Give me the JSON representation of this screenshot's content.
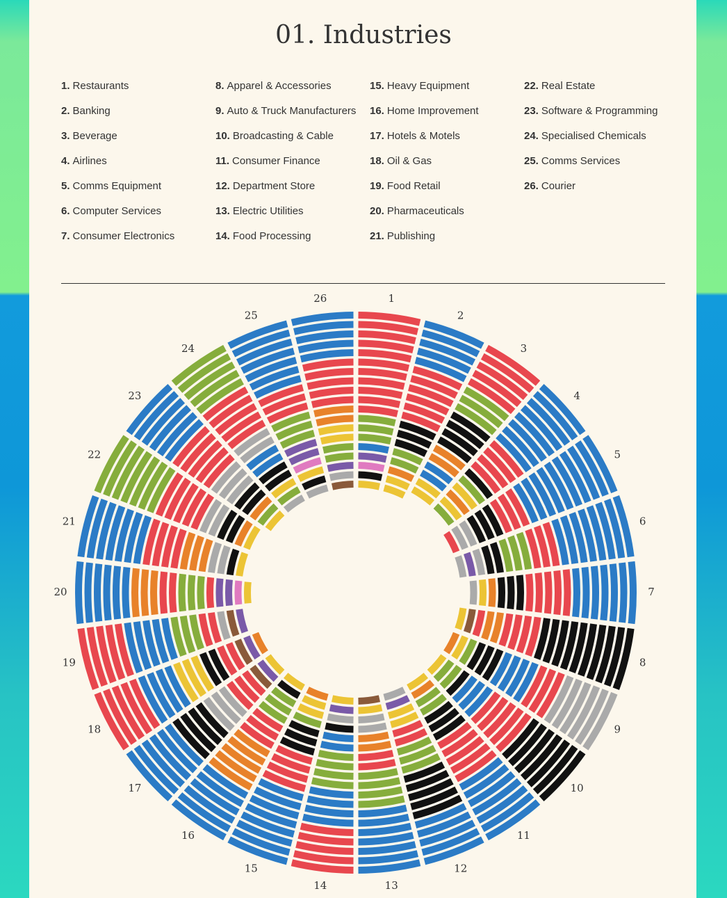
{
  "header": {
    "title": "01. Industries"
  },
  "legend": [
    {
      "number": "1.",
      "name": "Restaurants"
    },
    {
      "number": "2.",
      "name": "Banking"
    },
    {
      "number": "3.",
      "name": "Beverage"
    },
    {
      "number": "4.",
      "name": "Airlines"
    },
    {
      "number": "5.",
      "name": "Comms Equipment"
    },
    {
      "number": "6.",
      "name": "Computer Services"
    },
    {
      "number": "7.",
      "name": "Consumer Electronics"
    },
    {
      "number": "8.",
      "name": "Apparel & Accessories"
    },
    {
      "number": "9.",
      "name": "Auto & Truck Manufacturers"
    },
    {
      "number": "10.",
      "name": "Broadcasting & Cable"
    },
    {
      "number": "11.",
      "name": "Consumer Finance"
    },
    {
      "number": "12.",
      "name": "Department Store"
    },
    {
      "number": "13.",
      "name": "Electric Utilities"
    },
    {
      "number": "14.",
      "name": "Food Processing"
    },
    {
      "number": "15.",
      "name": "Heavy Equipment"
    },
    {
      "number": "16.",
      "name": "Home Improvement"
    },
    {
      "number": "17.",
      "name": "Hotels & Motels"
    },
    {
      "number": "18.",
      "name": "Oil & Gas"
    },
    {
      "number": "19.",
      "name": "Food Retail"
    },
    {
      "number": "20.",
      "name": "Pharmaceuticals"
    },
    {
      "number": "21.",
      "name": "Publishing"
    },
    {
      "number": "22.",
      "name": "Real Estate"
    },
    {
      "number": "23.",
      "name": "Software & Programming"
    },
    {
      "number": "24.",
      "name": "Specialised Chemicals"
    },
    {
      "number": "25.",
      "name": "Comms Services"
    },
    {
      "number": "26.",
      "name": "Courier"
    }
  ],
  "wheel": {
    "labels": [
      "1",
      "2",
      "3",
      "4",
      "5",
      "6",
      "7",
      "8",
      "9",
      "10",
      "11",
      "12",
      "13",
      "14",
      "15",
      "16",
      "17",
      "18",
      "19",
      "20",
      "21",
      "22",
      "23",
      "24",
      "25",
      "26"
    ]
  }
}
